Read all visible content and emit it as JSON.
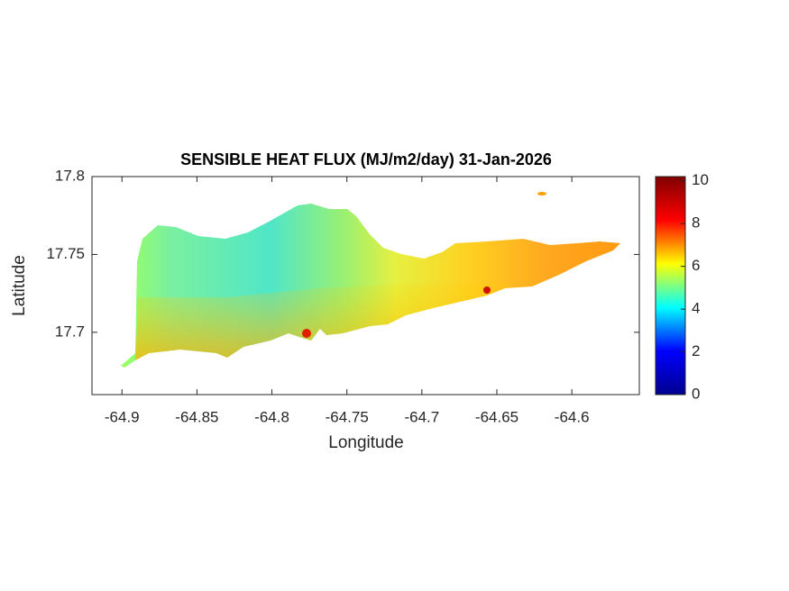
{
  "chart_data": {
    "type": "map",
    "title": "SENSIBLE HEAT FLUX (MJ/m2/day) 31-Jan-2026",
    "x_label": "Longitude",
    "y_label": "Latitude",
    "xlim": [
      -64.92,
      -64.555
    ],
    "xticks": [
      -64.9,
      -64.85,
      -64.8,
      -64.75,
      -64.7,
      -64.65,
      -64.6
    ],
    "ylim": [
      17.66,
      17.8
    ],
    "yticks": [
      17.7,
      17.75,
      17.8
    ],
    "clim": [
      0,
      10.2
    ],
    "cticks": [
      0,
      2,
      4,
      6,
      8,
      10
    ],
    "colormap": [
      "#00008f",
      "#0000ff",
      "#00ffff",
      "#ffff00",
      "#ff0000",
      "#800000"
    ]
  }
}
